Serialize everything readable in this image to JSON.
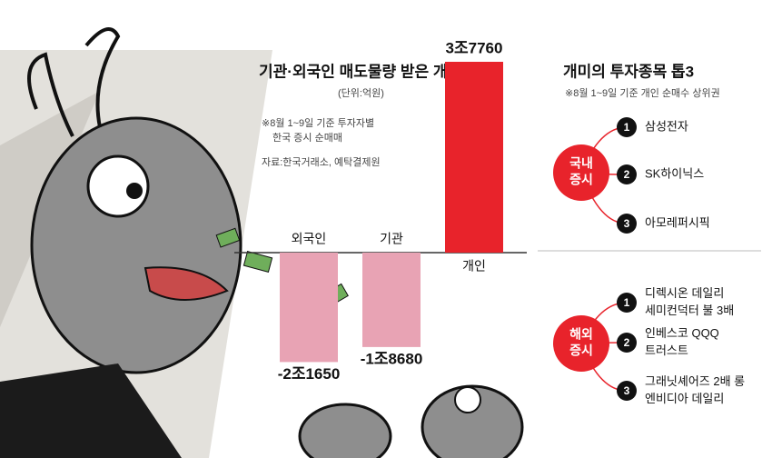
{
  "chart_data": {
    "type": "bar",
    "title": "기관·외국인 매도물량 받은 개인",
    "unit": "(단위:억원)",
    "note": [
      "※8월 1~9일 기준 투자자별",
      "한국 증시 순매매"
    ],
    "source": "자료:한국거래소, 예탁결제원",
    "categories": [
      "외국인",
      "기관",
      "개인"
    ],
    "values": [
      -21650,
      -18680,
      37760
    ],
    "value_labels": [
      "-2조1650",
      "-1조8680",
      "3조7760"
    ],
    "colors": [
      "#e8a3b4",
      "#e8a3b4",
      "#e8232b"
    ]
  },
  "ranking": {
    "title": "개미의 투자종목 톱3",
    "subtitle": "※8월 1~9일 기준 개인 순매수 상위권",
    "groups": [
      {
        "label": [
          "국내",
          "증시"
        ],
        "items": [
          {
            "rank": 1,
            "lines": [
              "삼성전자"
            ]
          },
          {
            "rank": 2,
            "lines": [
              "SK하이닉스"
            ]
          },
          {
            "rank": 3,
            "lines": [
              "아모레퍼시픽"
            ]
          }
        ]
      },
      {
        "label": [
          "해외",
          "증시"
        ],
        "items": [
          {
            "rank": 1,
            "lines": [
              "디렉시온 데일리",
              "세미컨덕터 불 3배"
            ]
          },
          {
            "rank": 2,
            "lines": [
              "인베스코 QQQ",
              "트러스트"
            ]
          },
          {
            "rank": 3,
            "lines": [
              "그래닛셰어즈 2배 롱",
              "엔비디아 데일리"
            ]
          }
        ]
      }
    ]
  }
}
